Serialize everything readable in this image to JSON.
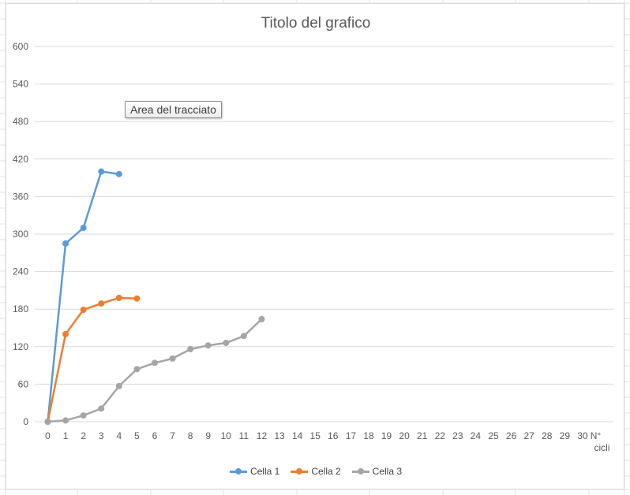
{
  "tooltip": "Area del tracciato",
  "colors": {
    "gridline": "#d9d9d9",
    "axis_text": "#595959",
    "sheet_grid": "#e1e1e1"
  },
  "chart_data": {
    "type": "line",
    "title": "Titolo del grafico",
    "xlabel": "N°\ncicli",
    "ylabel": "",
    "x_ticks": [
      0,
      1,
      2,
      3,
      4,
      5,
      6,
      7,
      8,
      9,
      10,
      11,
      12,
      13,
      14,
      15,
      16,
      17,
      18,
      19,
      20,
      21,
      22,
      23,
      24,
      25,
      26,
      27,
      28,
      29,
      30
    ],
    "xlim": [
      0,
      31
    ],
    "y_ticks": [
      0,
      60,
      120,
      180,
      240,
      300,
      360,
      420,
      480,
      540,
      600
    ],
    "ylim": [
      0,
      600
    ],
    "grid": "horizontal",
    "legend_position": "bottom",
    "series": [
      {
        "name": "Cella 1",
        "color": "#5b9bd5",
        "x": [
          0,
          1,
          2,
          3,
          4
        ],
        "y": [
          0,
          285,
          310,
          400,
          396
        ]
      },
      {
        "name": "Cella 2",
        "color": "#ed7d31",
        "x": [
          0,
          1,
          2,
          3,
          4,
          5
        ],
        "y": [
          0,
          140,
          179,
          189,
          198,
          197
        ]
      },
      {
        "name": "Cella 3",
        "color": "#a5a5a5",
        "x": [
          0,
          1,
          2,
          3,
          4,
          5,
          6,
          7,
          8,
          9,
          10,
          11,
          12
        ],
        "y": [
          0,
          2,
          10,
          21,
          57,
          84,
          94,
          101,
          116,
          122,
          126,
          137,
          164
        ]
      }
    ]
  }
}
